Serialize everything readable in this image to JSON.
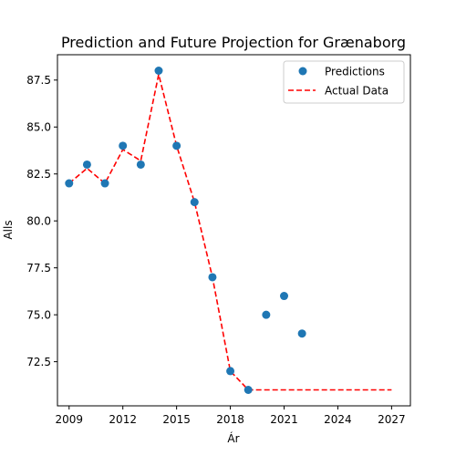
{
  "chart_data": {
    "type": "scatter",
    "title": "Prediction and Future Projection for Grænaborg",
    "xlabel": "Ár",
    "ylabel": "Alls",
    "xlim": [
      2008.35,
      2028.05
    ],
    "ylim": [
      70.15,
      88.85
    ],
    "xticks": [
      2009,
      2012,
      2015,
      2018,
      2021,
      2024,
      2027
    ],
    "yticks": [
      72.5,
      75.0,
      77.5,
      80.0,
      82.5,
      85.0,
      87.5
    ],
    "ytick_labels": [
      "72.5",
      "75.0",
      "77.5",
      "80.0",
      "82.5",
      "85.0",
      "87.5"
    ],
    "grid": false,
    "legend_position": "top-right",
    "series": [
      {
        "name": "Predictions",
        "kind": "scatter",
        "color": "#1f77b4",
        "x": [
          2009,
          2010,
          2011,
          2012,
          2013,
          2014,
          2015,
          2016,
          2017,
          2018,
          2019,
          2020,
          2021,
          2022
        ],
        "y": [
          82,
          83,
          82,
          84,
          83,
          88,
          84,
          81,
          77,
          72,
          71,
          75,
          76,
          74
        ]
      },
      {
        "name": "Actual Data",
        "kind": "line",
        "style": "dashed",
        "color": "#ff0000",
        "x": [
          2009,
          2010,
          2011,
          2012,
          2013,
          2014,
          2015,
          2016,
          2017,
          2018,
          2019,
          2020,
          2021,
          2022,
          2023,
          2024,
          2025,
          2026,
          2027
        ],
        "y": [
          82,
          82.8,
          82,
          83.8,
          83.2,
          87.8,
          84,
          81,
          77,
          72,
          71,
          71,
          71,
          71,
          71,
          71,
          71,
          71,
          71
        ]
      }
    ]
  }
}
